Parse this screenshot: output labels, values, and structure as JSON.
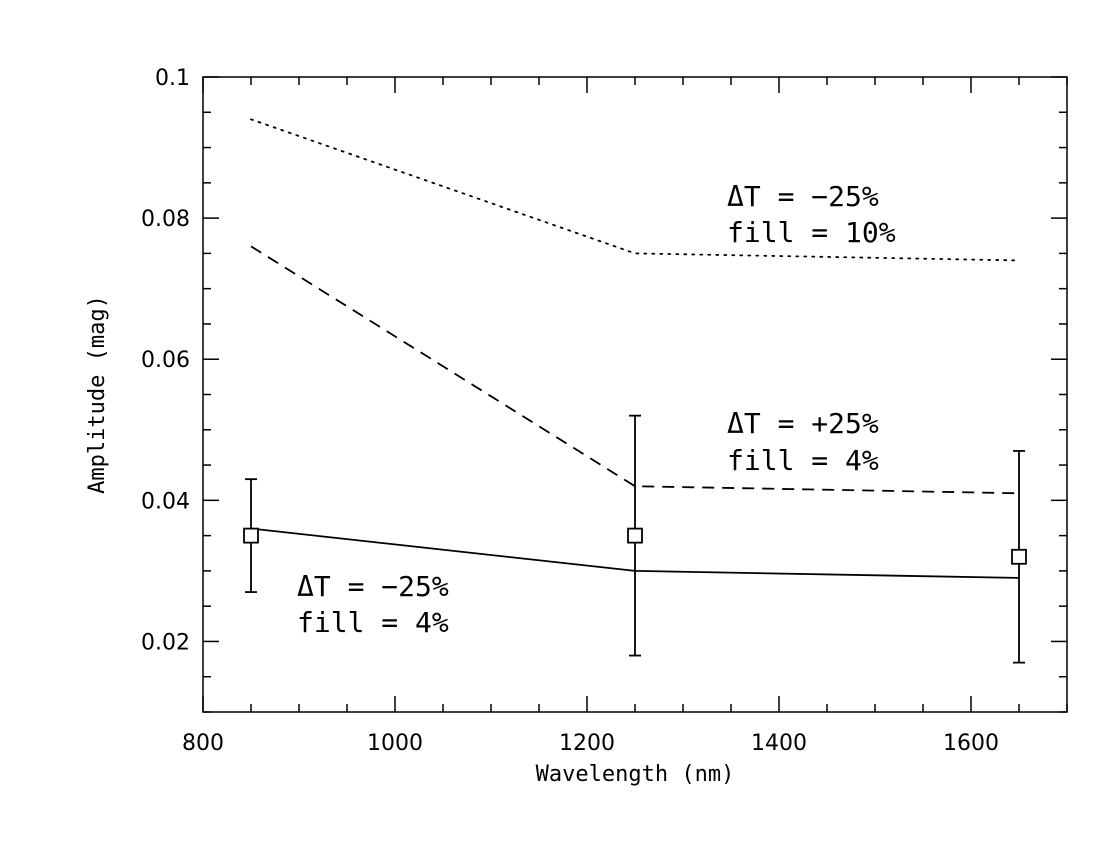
{
  "chart_data": {
    "type": "line",
    "title": "",
    "xlabel": "Wavelength (nm)",
    "ylabel": "Amplitude (mag)",
    "xlim": [
      800,
      1700
    ],
    "ylim": [
      0.01,
      0.1
    ],
    "x_major_ticks": [
      800,
      1000,
      1200,
      1400,
      1600
    ],
    "x_minor_step": 50,
    "y_major_ticks": [
      0.02,
      0.04,
      0.06,
      0.08,
      0.1
    ],
    "y_minor_step": 0.005,
    "grid": false,
    "series": [
      {
        "style": "dotted",
        "x": [
          850,
          1250,
          1650
        ],
        "y": [
          0.094,
          0.075,
          0.074
        ]
      },
      {
        "style": "dashed",
        "x": [
          850,
          1250,
          1650
        ],
        "y": [
          0.076,
          0.042,
          0.041
        ]
      },
      {
        "style": "solid",
        "x": [
          850,
          1250,
          1650
        ],
        "y": [
          0.036,
          0.03,
          0.029
        ]
      }
    ],
    "observations": {
      "marker": "open-square",
      "x": [
        850,
        1250,
        1650
      ],
      "y": [
        0.035,
        0.035,
        0.032
      ],
      "err_low": [
        0.027,
        0.018,
        0.017
      ],
      "err_high": [
        0.043,
        0.052,
        0.047
      ]
    },
    "annotations": [
      {
        "lines": [
          "ΔT  =  −25%",
          "fill  =  10%"
        ],
        "series": "dotted"
      },
      {
        "lines": [
          "ΔT  =  +25%",
          "fill  =  4%"
        ],
        "series": "dashed"
      },
      {
        "lines": [
          "ΔT  =  −25%",
          "fill  =  4%"
        ],
        "series": "solid"
      }
    ]
  }
}
